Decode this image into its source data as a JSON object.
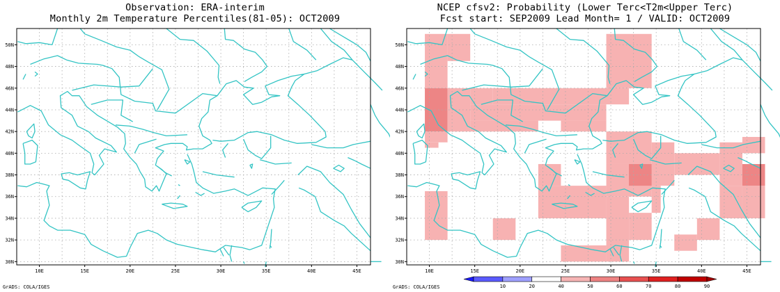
{
  "left_panel": {
    "title_line1": "Observation: ERA-interim",
    "title_line2": "Monthly 2m Temperature Percentiles(81-05): OCT2009",
    "credit": "GrADS: COLA/IGES"
  },
  "right_panel": {
    "title_line1": "NCEP cfsv2: Probability (Lower Terc<T2m<Upper Terc)",
    "title_line2": "Fcst start: SEP2009  Lead Month= 1 / VALID: OCT2009",
    "credit": "GrADS: COLA/IGES"
  },
  "axes": {
    "lon_ticks": [
      "10E",
      "15E",
      "20E",
      "25E",
      "30E",
      "35E",
      "40E",
      "45E"
    ],
    "lat_ticks": [
      "50N",
      "48N",
      "46N",
      "44N",
      "42N",
      "40N",
      "38N",
      "36N",
      "34N",
      "32N",
      "30N"
    ]
  },
  "colorbar": {
    "labels": [
      "10",
      "20",
      "40",
      "50",
      "60",
      "70",
      "80",
      "90"
    ],
    "colors": [
      "#1a1aff",
      "#5a5aff",
      "#9fa0ff",
      "#ffffff",
      "#f6b4b4",
      "#ee8282",
      "#e85050",
      "#e02020",
      "#c00000",
      "#a00000"
    ]
  },
  "colors": {
    "coastline": "#33c4c4",
    "grid": "#aaaaaa",
    "prob_40_50": "#f7b2b2",
    "prob_50_60": "#ed8585",
    "prob_60_70": "#e05a5a"
  },
  "forecast_cells": [
    {
      "lon": 9.5,
      "lat": 46.0,
      "level": "40-50",
      "w": 2.5,
      "h": 5
    },
    {
      "lon": 12,
      "lat": 48.5,
      "level": "40-50",
      "w": 2.5,
      "h": 2.5
    },
    {
      "lon": 9.5,
      "lat": 42.0,
      "level": "50-60",
      "w": 2.5,
      "h": 4
    },
    {
      "lon": 12,
      "lat": 42.0,
      "level": "40-50",
      "w": 2.5,
      "h": 4
    },
    {
      "lon": 14.5,
      "lat": 44.5,
      "level": "40-50",
      "w": 2.5,
      "h": 1.5
    },
    {
      "lon": 17,
      "lat": 44.5,
      "level": "40-50",
      "w": 10,
      "h": 1.5
    },
    {
      "lon": 27,
      "lat": 44.5,
      "level": "40-50",
      "w": 5,
      "h": 1.5
    },
    {
      "lon": 29.5,
      "lat": 46.0,
      "level": "40-50",
      "w": 5,
      "h": 5
    },
    {
      "lon": 14.5,
      "lat": 43.0,
      "level": "40-50",
      "w": 15,
      "h": 1.5
    },
    {
      "lon": 14.5,
      "lat": 42.0,
      "level": "40-50",
      "w": 7.5,
      "h": 1
    },
    {
      "lon": 24.5,
      "lat": 42.0,
      "level": "40-50",
      "w": 5,
      "h": 1
    },
    {
      "lon": 9.5,
      "lat": 41.0,
      "level": "40-50",
      "w": 2.5,
      "h": 1
    },
    {
      "lon": 9.5,
      "lat": 40.5,
      "level": "40-50",
      "w": 1.5,
      "h": 0.5
    },
    {
      "lon": 22,
      "lat": 37.0,
      "level": "40-50",
      "w": 2.5,
      "h": 2
    },
    {
      "lon": 22,
      "lat": 34.0,
      "level": "40-50",
      "w": 7.5,
      "h": 3
    },
    {
      "lon": 29.5,
      "lat": 39.0,
      "level": "40-50",
      "w": 5,
      "h": 3
    },
    {
      "lon": 29.5,
      "lat": 36.0,
      "level": "40-50",
      "w": 5,
      "h": 3
    },
    {
      "lon": 29.5,
      "lat": 30.0,
      "level": "40-50",
      "w": 2.5,
      "h": 6
    },
    {
      "lon": 32,
      "lat": 36.5,
      "level": "40-50",
      "w": 2.5,
      "h": 2
    },
    {
      "lon": 32,
      "lat": 32.0,
      "level": "40-50",
      "w": 2.5,
      "h": 2.5
    },
    {
      "lon": 34.5,
      "lat": 37.0,
      "level": "40-50",
      "w": 2.5,
      "h": 4
    },
    {
      "lon": 34.5,
      "lat": 34.5,
      "level": "40-50",
      "w": 1,
      "h": 2.5
    },
    {
      "lon": 37,
      "lat": 38.0,
      "level": "40-50",
      "w": 5,
      "h": 2
    },
    {
      "lon": 42,
      "lat": 37.0,
      "level": "40-50",
      "w": 2.5,
      "h": 4
    },
    {
      "lon": 44.5,
      "lat": 40.0,
      "level": "40-50",
      "w": 2.5,
      "h": 1.5
    },
    {
      "lon": 44.5,
      "lat": 34.0,
      "level": "40-50",
      "w": 2.5,
      "h": 3
    },
    {
      "lon": 42,
      "lat": 34.0,
      "level": "40-50",
      "w": 2.5,
      "h": 3
    },
    {
      "lon": 39.5,
      "lat": 32.0,
      "level": "40-50",
      "w": 2.5,
      "h": 2
    },
    {
      "lon": 37,
      "lat": 31.0,
      "level": "40-50",
      "w": 2.5,
      "h": 1.5
    },
    {
      "lon": 24.5,
      "lat": 30.0,
      "level": "40-50",
      "w": 5,
      "h": 1.5
    },
    {
      "lon": 17,
      "lat": 32.0,
      "level": "40-50",
      "w": 2.5,
      "h": 2
    },
    {
      "lon": 9.5,
      "lat": 32.0,
      "level": "40-50",
      "w": 2.5,
      "h": 4.5
    },
    {
      "lon": 32,
      "lat": 37.0,
      "level": "50-60",
      "w": 2.5,
      "h": 2
    },
    {
      "lon": 44.5,
      "lat": 37.0,
      "level": "50-60",
      "w": 2.5,
      "h": 2
    }
  ]
}
